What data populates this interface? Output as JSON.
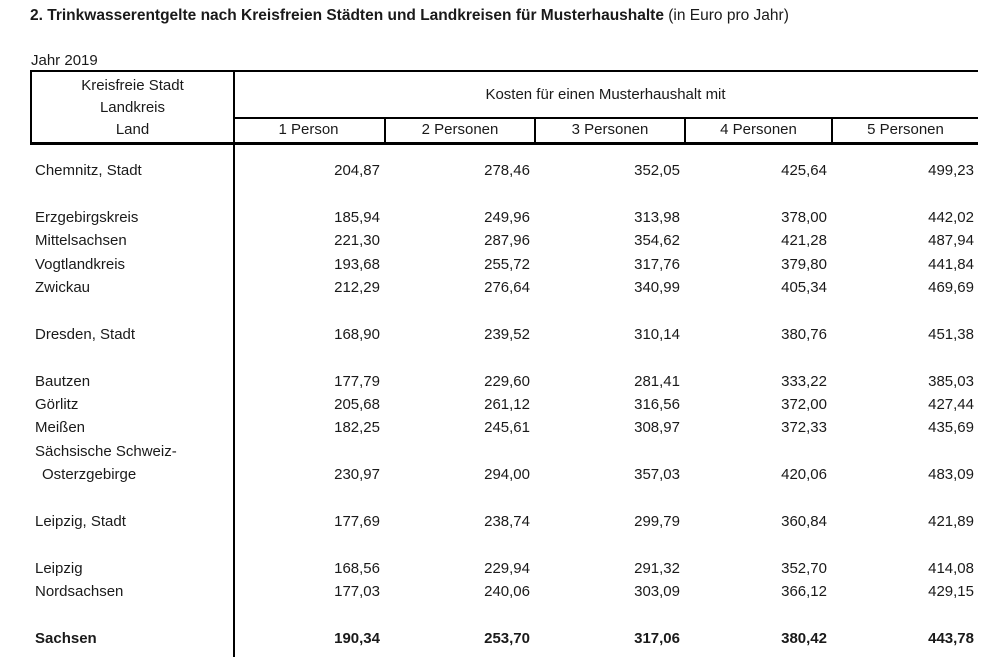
{
  "title": {
    "text": "2. Trinkwasserentgelte nach Kreisfreien Städten und Landkreisen für Musterhaushalte ",
    "suffix": "(in Euro pro Jahr)"
  },
  "year_label": "Jahr 2019",
  "colors": {
    "text": "#1a1a1a",
    "line": "#000000",
    "background": "#ffffff"
  },
  "table": {
    "stub_header": [
      "Kreisfreie Stadt",
      "Landkreis",
      "Land"
    ],
    "span_header": "Kosten für einen Musterhaushalt mit",
    "column_headers": [
      "1 Person",
      "2 Personen",
      "3 Personen",
      "4 Personen",
      "5 Personen"
    ],
    "rows": [
      {
        "type": "data",
        "label": "Chemnitz, Stadt",
        "values": [
          "204,87",
          "278,46",
          "352,05",
          "425,64",
          "499,23"
        ]
      },
      {
        "type": "spacer"
      },
      {
        "type": "data",
        "label": "Erzgebirgskreis",
        "values": [
          "185,94",
          "249,96",
          "313,98",
          "378,00",
          "442,02"
        ]
      },
      {
        "type": "data",
        "label": "Mittelsachsen",
        "values": [
          "221,30",
          "287,96",
          "354,62",
          "421,28",
          "487,94"
        ]
      },
      {
        "type": "data",
        "label": "Vogtlandkreis",
        "values": [
          "193,68",
          "255,72",
          "317,76",
          "379,80",
          "441,84"
        ]
      },
      {
        "type": "data",
        "label": "Zwickau",
        "values": [
          "212,29",
          "276,64",
          "340,99",
          "405,34",
          "469,69"
        ]
      },
      {
        "type": "spacer"
      },
      {
        "type": "data",
        "label": "Dresden, Stadt",
        "values": [
          "168,90",
          "239,52",
          "310,14",
          "380,76",
          "451,38"
        ]
      },
      {
        "type": "spacer"
      },
      {
        "type": "data",
        "label": "Bautzen",
        "values": [
          "177,79",
          "229,60",
          "281,41",
          "333,22",
          "385,03"
        ]
      },
      {
        "type": "data",
        "label": "Görlitz",
        "values": [
          "205,68",
          "261,12",
          "316,56",
          "372,00",
          "427,44"
        ]
      },
      {
        "type": "data",
        "label": "Meißen",
        "values": [
          "182,25",
          "245,61",
          "308,97",
          "372,33",
          "435,69"
        ]
      },
      {
        "type": "data",
        "label": "Sächsische Schweiz-",
        "values": [
          "",
          "",
          "",
          "",
          ""
        ]
      },
      {
        "type": "data",
        "label": "Osterzgebirge",
        "indent": true,
        "values": [
          "230,97",
          "294,00",
          "357,03",
          "420,06",
          "483,09"
        ]
      },
      {
        "type": "spacer"
      },
      {
        "type": "data",
        "label": "Leipzig, Stadt",
        "values": [
          "177,69",
          "238,74",
          "299,79",
          "360,84",
          "421,89"
        ]
      },
      {
        "type": "spacer"
      },
      {
        "type": "data",
        "label": "Leipzig",
        "values": [
          "168,56",
          "229,94",
          "291,32",
          "352,70",
          "414,08"
        ]
      },
      {
        "type": "data",
        "label": "Nordsachsen",
        "values": [
          "177,03",
          "240,06",
          "303,09",
          "366,12",
          "429,15"
        ]
      },
      {
        "type": "spacer"
      },
      {
        "type": "data",
        "label": "Sachsen",
        "bold": true,
        "values": [
          "190,34",
          "253,70",
          "317,06",
          "380,42",
          "443,78"
        ]
      }
    ]
  }
}
